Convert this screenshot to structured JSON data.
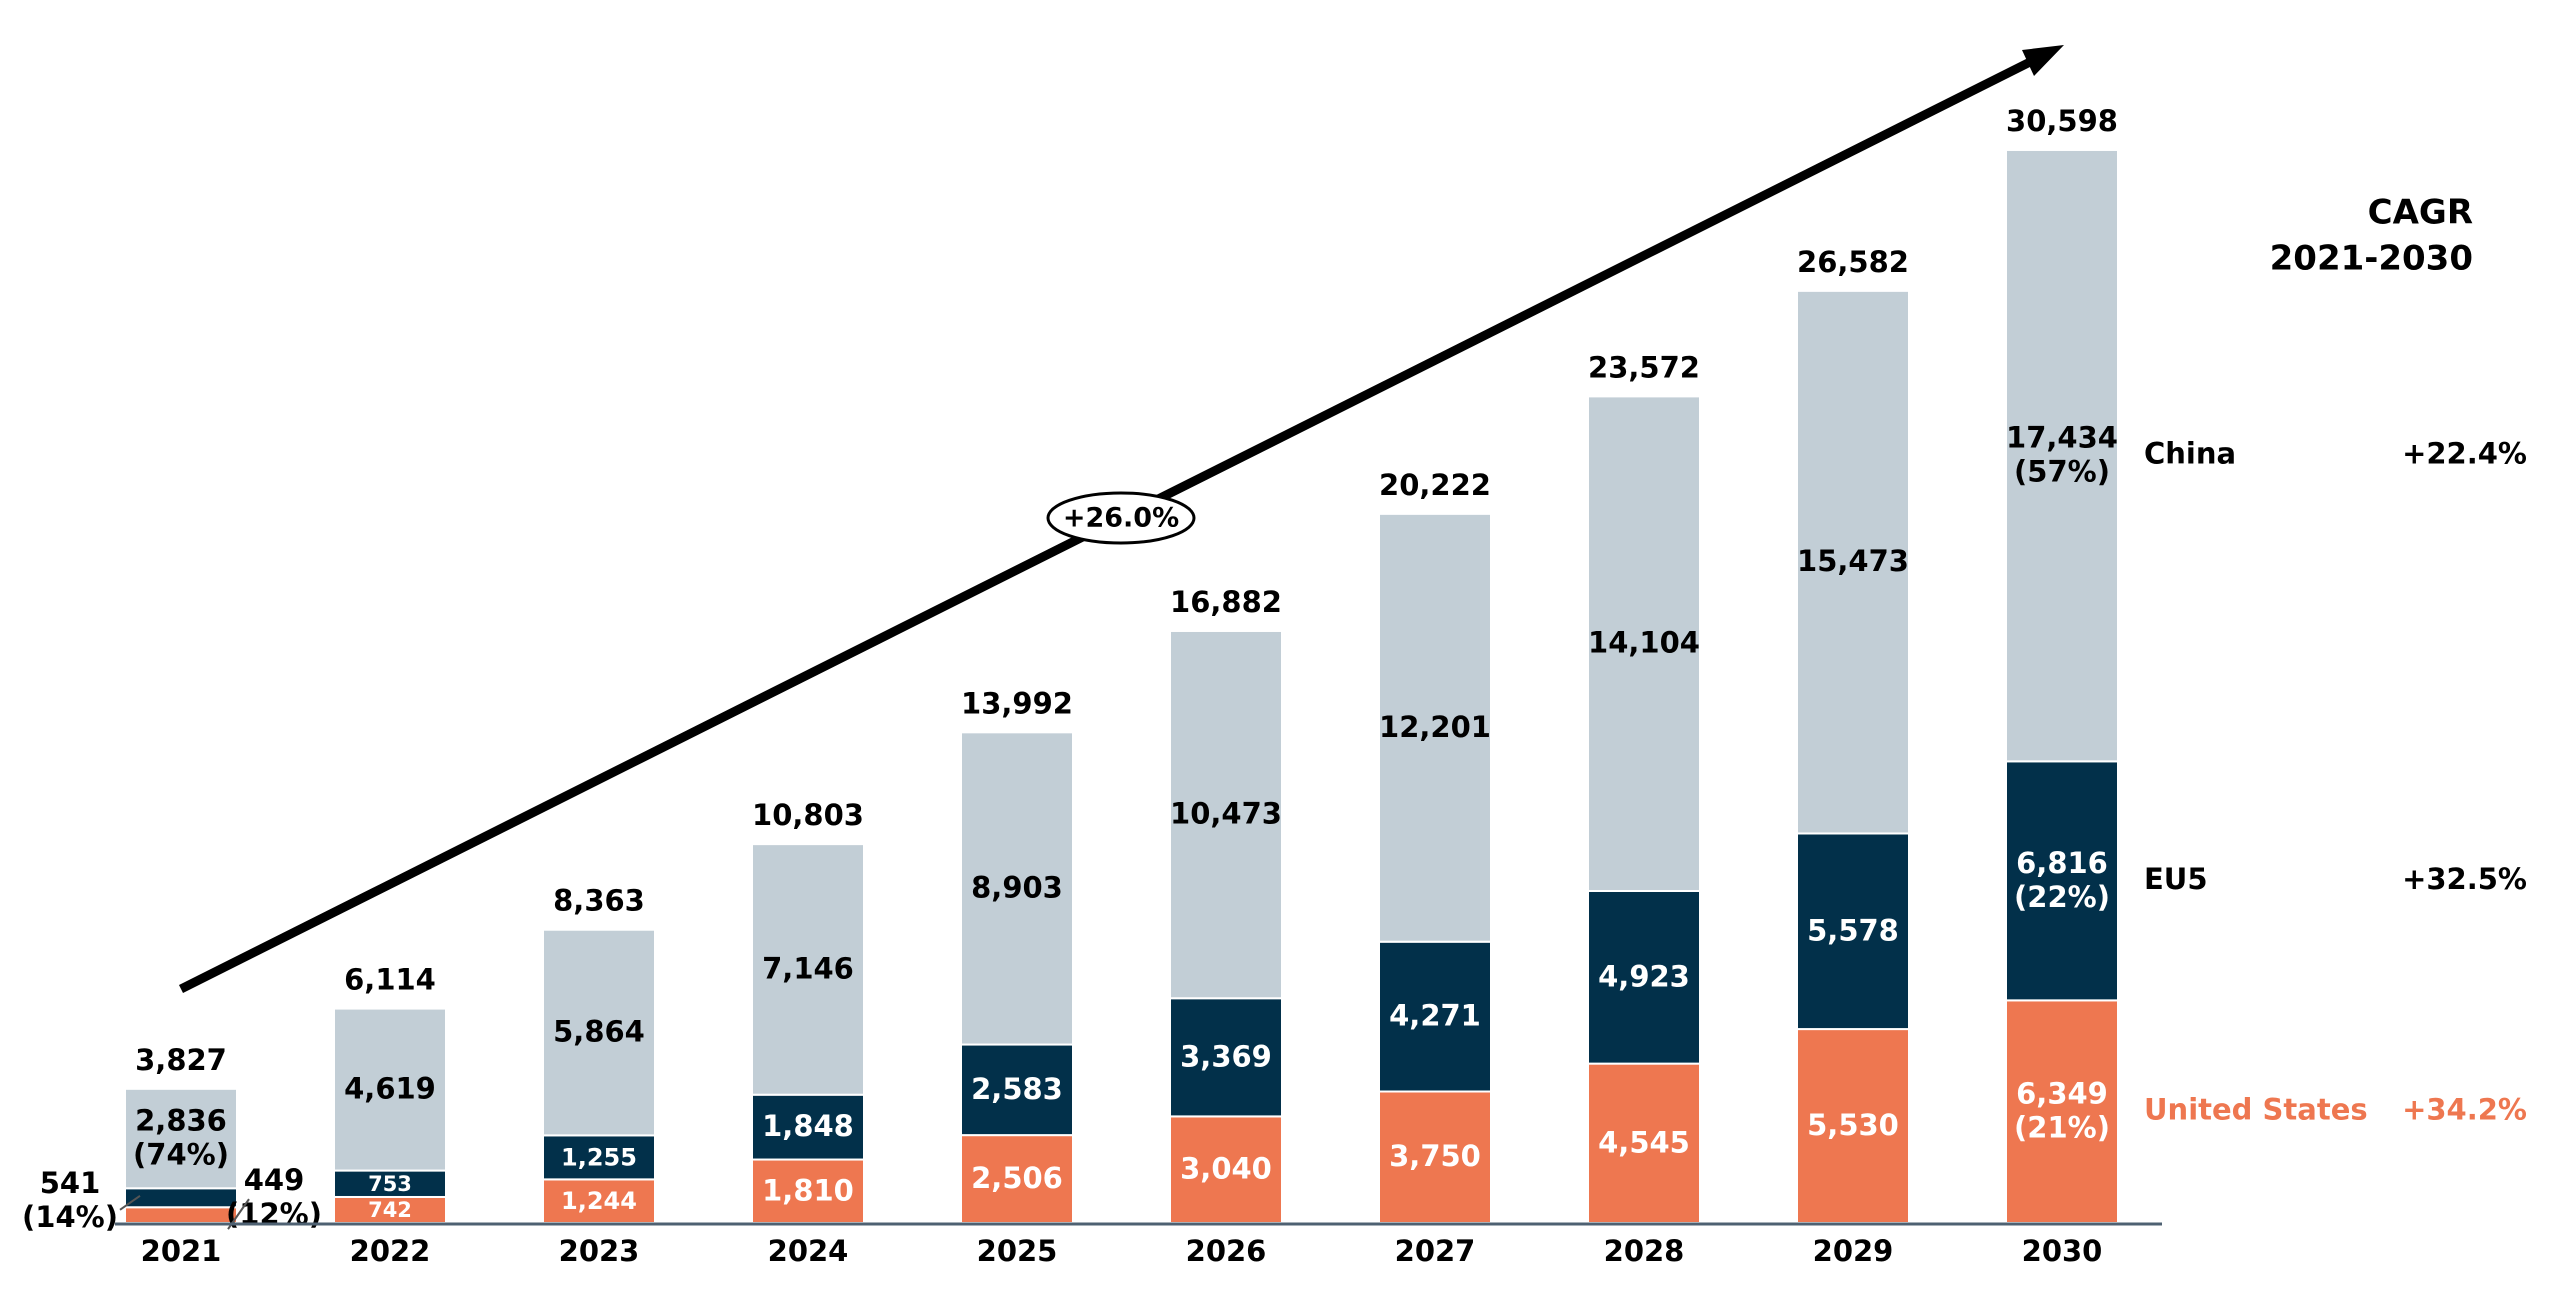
{
  "chart_data": {
    "type": "bar",
    "stacked": true,
    "categories": [
      "2021",
      "2022",
      "2023",
      "2024",
      "2025",
      "2026",
      "2027",
      "2028",
      "2029",
      "2030"
    ],
    "series": [
      {
        "name": "United States",
        "color": "#ee7750",
        "values": [
          449,
          742,
          1244,
          1810,
          2506,
          3040,
          3750,
          4545,
          5530,
          6349
        ],
        "labels": [
          "449\n(12%)",
          "742",
          "1,244",
          "1,810",
          "2,506",
          "3,040",
          "3,750",
          "4,545",
          "5,530",
          "6,349\n(21%)"
        ]
      },
      {
        "name": "EU5",
        "color": "#02304a",
        "values": [
          541,
          753,
          1255,
          1848,
          2583,
          3369,
          4271,
          4923,
          5578,
          6816
        ],
        "labels": [
          "541\n(14%)",
          "753",
          "1,255",
          "1,848",
          "2,583",
          "3,369",
          "4,271",
          "4,923",
          "5,578",
          "6,816\n(22%)"
        ]
      },
      {
        "name": "China",
        "color": "#c2ced6",
        "values": [
          2836,
          4619,
          5864,
          7146,
          8903,
          10473,
          12201,
          14104,
          15473,
          17434
        ],
        "labels": [
          "2,836\n(74%)",
          "4,619",
          "5,864",
          "7,146",
          "8,903",
          "10,473",
          "12,201",
          "14,104",
          "15,473",
          "17,434\n(57%)"
        ]
      }
    ],
    "totals": [
      3827,
      6114,
      8363,
      10803,
      13992,
      16882,
      20222,
      23572,
      26582,
      30598
    ],
    "total_labels": [
      "3,827",
      "6,114",
      "8,363",
      "10,803",
      "13,992",
      "16,882",
      "20,222",
      "23,572",
      "26,582",
      "30,598"
    ],
    "ylim": [
      0,
      32000
    ],
    "grid": false,
    "legend": {
      "placement": "right",
      "header": [
        "CAGR",
        "2021-2030"
      ],
      "entries": [
        {
          "name": "China",
          "cagr": "+22.4%",
          "color": "#000000"
        },
        {
          "name": "EU5",
          "cagr": "+32.5%",
          "color": "#000000"
        },
        {
          "name": "United States",
          "cagr": "+34.2%",
          "color": "#ee7750"
        }
      ]
    },
    "trend_annotation": "+26.0%"
  }
}
